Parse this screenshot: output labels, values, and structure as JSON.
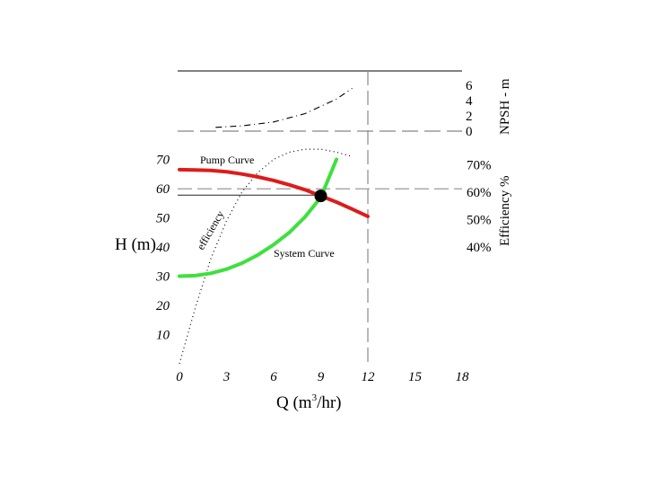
{
  "chart_data": {
    "type": "line",
    "x": {
      "label": "Q (m³/hr)",
      "label_main": "Q (m",
      "label_sup": "3",
      "label_tail": "/hr)",
      "range": [
        0,
        18
      ],
      "ticks": [
        "0",
        "3",
        "6",
        "9",
        "12",
        "15",
        "18"
      ]
    },
    "y_left": {
      "label": "H (m)",
      "range": [
        0,
        70
      ],
      "ticks": [
        "10",
        "20",
        "30",
        "40",
        "50",
        "60",
        "70"
      ]
    },
    "y_efficiency": {
      "label": "Efficiency %",
      "ticks": [
        "40%",
        "50%",
        "60%",
        "70%"
      ]
    },
    "y_npsh": {
      "label": "NPSH - m",
      "ticks": [
        "0",
        "2",
        "4",
        "6"
      ]
    },
    "series": [
      {
        "name": "Pump Curve",
        "color": "#dd1c1c",
        "x": [
          0,
          1,
          2,
          3,
          4,
          5,
          6,
          7,
          8,
          9,
          10,
          11,
          12
        ],
        "y": [
          66.5,
          66.4,
          66.2,
          65.8,
          65.0,
          64.0,
          62.8,
          61.3,
          59.6,
          57.5,
          55.4,
          53.0,
          50.5
        ]
      },
      {
        "name": "System Curve",
        "color": "#3ee03e",
        "x": [
          0,
          1,
          2,
          3,
          4,
          5,
          6,
          7,
          8,
          9,
          10
        ],
        "y": [
          30,
          30.2,
          31.0,
          32.4,
          34.5,
          37.3,
          40.8,
          45.0,
          50.3,
          57.0,
          70.0
        ]
      },
      {
        "name": "efficiency",
        "style": "dotted",
        "color": "#000000",
        "x": [
          0,
          1,
          2,
          3,
          4,
          5,
          6,
          7,
          8,
          9,
          10,
          11
        ],
        "y": [
          0,
          19,
          36,
          49,
          59,
          65.5,
          70,
          72.5,
          73.5,
          73.5,
          72.5,
          71
        ]
      },
      {
        "name": "NPSH",
        "style": "dashed-dotted",
        "color": "#000000",
        "x": [
          2.3,
          4,
          6,
          8,
          10,
          11
        ],
        "npsh": [
          0.5,
          0.7,
          1.2,
          2.3,
          4.2,
          5.6
        ]
      }
    ],
    "operating_point": {
      "x": 9,
      "y": 57.5,
      "color": "#000000"
    },
    "reference_lines": {
      "flow_rate": 12,
      "head": 59
    },
    "annotations": [
      "Pump Curve",
      "System Curve",
      "efficiency"
    ],
    "grid": false,
    "legend": "none"
  }
}
